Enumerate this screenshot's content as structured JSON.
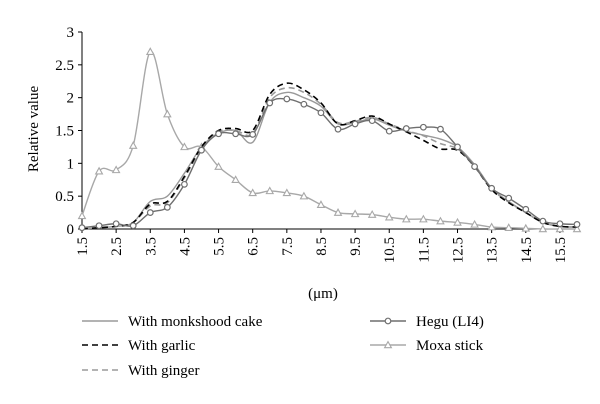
{
  "chart_data": {
    "type": "line",
    "title": "",
    "xlabel": "(μm)",
    "ylabel": "Relative value",
    "xlim": [
      1.5,
      16.0
    ],
    "ylim": [
      0,
      3
    ],
    "x_ticks": [
      "1.5",
      "2.5",
      "3.5",
      "4.5",
      "5.5",
      "6.5",
      "7.5",
      "8.5",
      "9.5",
      "10.5",
      "11.5",
      "12.5",
      "13.5",
      "14.5",
      "15.5"
    ],
    "y_ticks": [
      "0",
      "0.5",
      "1",
      "1.5",
      "2",
      "2.5",
      "3"
    ],
    "grid": false,
    "legend_position": "bottom",
    "series": [
      {
        "name": "With monkshood cake",
        "color": "#9a9a9a",
        "dash": "solid",
        "marker": "none",
        "x": [
          1.5,
          2,
          2.5,
          3,
          3.5,
          4,
          4.5,
          5,
          5.5,
          6,
          6.5,
          7,
          7.5,
          8,
          8.5,
          9,
          9.5,
          10,
          10.5,
          11,
          11.5,
          12,
          12.5,
          13,
          13.5,
          14,
          14.5,
          15,
          15.5,
          16
        ],
        "y": [
          0,
          0.02,
          0.04,
          0.1,
          0.42,
          0.5,
          0.85,
          1.25,
          1.46,
          1.5,
          1.32,
          1.93,
          2.08,
          2.0,
          1.87,
          1.6,
          1.62,
          1.68,
          1.58,
          1.49,
          1.43,
          1.37,
          1.25,
          0.98,
          0.62,
          0.42,
          0.25,
          0.1,
          0.04,
          0.03
        ]
      },
      {
        "name": "With garlic",
        "color": "#000000",
        "dash": "dashed",
        "marker": "none",
        "x": [
          1.5,
          2,
          2.5,
          3,
          3.5,
          4,
          4.5,
          5,
          5.5,
          6,
          6.5,
          7,
          7.5,
          8,
          8.5,
          9,
          9.5,
          10,
          10.5,
          11,
          11.5,
          12,
          12.5,
          13,
          13.5,
          14,
          14.5,
          15,
          15.5,
          16
        ],
        "y": [
          0,
          0.02,
          0.04,
          0.1,
          0.38,
          0.42,
          0.8,
          1.25,
          1.5,
          1.53,
          1.5,
          2.05,
          2.22,
          2.12,
          1.92,
          1.6,
          1.65,
          1.72,
          1.6,
          1.48,
          1.35,
          1.22,
          1.2,
          0.95,
          0.6,
          0.4,
          0.25,
          0.1,
          0.04,
          0.03
        ]
      },
      {
        "name": "With ginger",
        "color": "#9a9a9a",
        "dash": "dashed",
        "marker": "none",
        "x": [
          1.5,
          2,
          2.5,
          3,
          3.5,
          4,
          4.5,
          5,
          5.5,
          6,
          6.5,
          7,
          7.5,
          8,
          8.5,
          9,
          9.5,
          10,
          10.5,
          11,
          11.5,
          12,
          12.5,
          13,
          13.5,
          14,
          14.5,
          15,
          15.5,
          16
        ],
        "y": [
          0,
          0.02,
          0.04,
          0.1,
          0.35,
          0.4,
          0.78,
          1.22,
          1.48,
          1.5,
          1.45,
          2.0,
          2.15,
          2.08,
          1.9,
          1.62,
          1.64,
          1.7,
          1.6,
          1.5,
          1.42,
          1.3,
          1.22,
          0.97,
          0.61,
          0.41,
          0.25,
          0.1,
          0.04,
          0.03
        ]
      },
      {
        "name": "Hegu (LI4)",
        "color": "#6f6f6f",
        "dash": "solid",
        "marker": "circle",
        "x": [
          1.5,
          2,
          2.5,
          3,
          3.5,
          4,
          4.5,
          5,
          5.5,
          6,
          6.5,
          7,
          7.5,
          8,
          8.5,
          9,
          9.5,
          10,
          10.5,
          11,
          11.5,
          12,
          12.5,
          13,
          13.5,
          14,
          14.5,
          15,
          15.5,
          16
        ],
        "y": [
          0.02,
          0.05,
          0.08,
          0.05,
          0.25,
          0.33,
          0.68,
          1.2,
          1.45,
          1.45,
          1.44,
          1.92,
          1.98,
          1.9,
          1.77,
          1.52,
          1.6,
          1.65,
          1.49,
          1.53,
          1.55,
          1.52,
          1.25,
          0.95,
          0.62,
          0.47,
          0.3,
          0.12,
          0.08,
          0.07
        ]
      },
      {
        "name": "Moxa stick",
        "color": "#a8a8a8",
        "dash": "solid",
        "marker": "triangle",
        "x": [
          1.5,
          2,
          2.5,
          3,
          3.5,
          4,
          4.5,
          5,
          5.5,
          6,
          6.5,
          7,
          7.5,
          8,
          8.5,
          9,
          9.5,
          10,
          10.5,
          11,
          11.5,
          12,
          12.5,
          13,
          13.5,
          14,
          14.5,
          15,
          15.5,
          16
        ],
        "y": [
          0.2,
          0.88,
          0.9,
          1.27,
          2.7,
          1.75,
          1.25,
          1.25,
          0.95,
          0.75,
          0.55,
          0.58,
          0.55,
          0.5,
          0.37,
          0.25,
          0.23,
          0.22,
          0.18,
          0.15,
          0.15,
          0.12,
          0.1,
          0.07,
          0.03,
          0.02,
          0.01,
          0,
          0,
          0
        ]
      }
    ]
  }
}
